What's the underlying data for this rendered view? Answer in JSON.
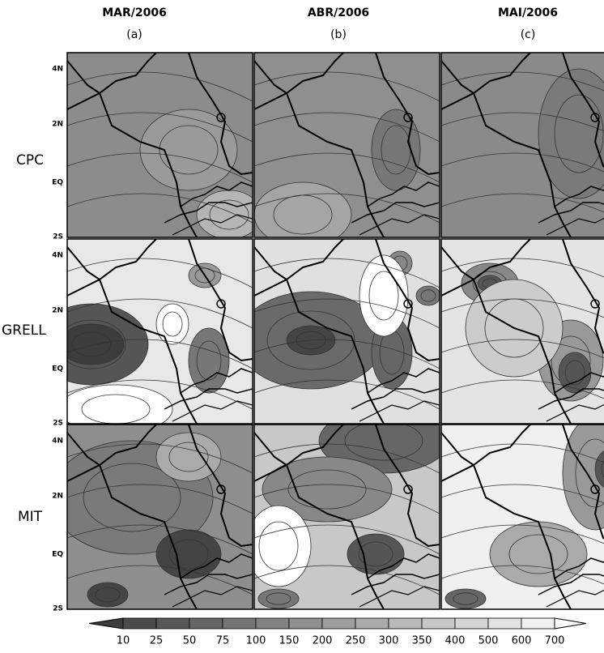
{
  "columns": [
    {
      "title": "MAR/2006",
      "label": "(a)"
    },
    {
      "title": "ABR/2006",
      "label": "(b)"
    },
    {
      "title": "MAI/2006",
      "label": "(c)"
    }
  ],
  "rows": [
    "CPC",
    "GRELL",
    "MIT"
  ],
  "latitude_labels": [
    "4N",
    "2N",
    "EQ",
    "2S"
  ],
  "colorbar": {
    "levels": [
      10,
      25,
      50,
      75,
      100,
      150,
      200,
      250,
      300,
      350,
      400,
      500,
      600,
      700
    ]
  }
}
